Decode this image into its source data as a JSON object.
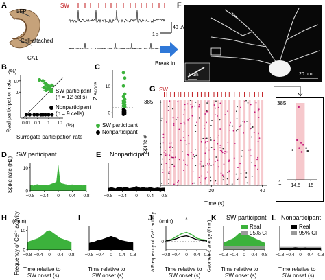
{
  "panels": {
    "A": {
      "label": "A",
      "sw": "SW",
      "lfp": "LFP",
      "cell_attached": "Cell-attached",
      "ca1": "CA1",
      "scale_time": "1 s",
      "scale_amp": "40 μV"
    },
    "B": {
      "label": "B",
      "y_unit": "(%)",
      "x_unit": "(%)",
      "ylabel": "Real participation rate",
      "xlabel": "Surrogate participation rate",
      "x_ticks": [
        "0.01",
        "0.1",
        "1",
        "10"
      ],
      "y_ticks": [
        "10",
        "1"
      ],
      "legend_participant": "SW participant",
      "legend_participant_n": "(n = 12 cells)",
      "legend_nonparticipant": "Nonparticipant",
      "legend_nonparticipant_n": "(n = 9 cells)"
    },
    "C": {
      "label": "C",
      "ylabel": "Z score",
      "y_ticks": [
        "10",
        "0"
      ],
      "legend_participant": "SW participant",
      "legend_nonparticipant": "Nonparticipant"
    },
    "D": {
      "label": "D",
      "title": "SW participant",
      "ylabel": "Spike rate (Hz)",
      "y_ticks": [
        "10",
        "0"
      ],
      "x_ticks": [
        "−0.8",
        "−0.4",
        "0",
        "0.4",
        "0.8"
      ]
    },
    "E": {
      "label": "E",
      "title": "Nonparticipant",
      "x_ticks": [
        "−0.8",
        "−0.4",
        "0",
        "0.4",
        "0.8"
      ]
    },
    "F": {
      "label": "F",
      "break_in": "Break in",
      "scale_main": "20 μm",
      "scale_inset": "5 μm"
    },
    "G": {
      "label": "G",
      "sw": "SW",
      "ylabel": "Spine #",
      "y_top": "385",
      "y_bottom": "1",
      "xlabel": "Time (s)",
      "x_ticks": [
        "0",
        "20",
        "40"
      ],
      "zoom_y_top": "385",
      "zoom_y_bottom": "1",
      "zoom_x_ticks": [
        "14.5",
        "15"
      ]
    },
    "H": {
      "label": "H",
      "unit": "(/min)",
      "ylabel": "Frequency of Ca²⁺ activity",
      "y_ticks": [
        "10",
        "0"
      ],
      "x_ticks": [
        "−0.8",
        "−0.4",
        "0",
        "0.4",
        "0.8"
      ],
      "xlabel_1": "Time relative to",
      "xlabel_2": "SW onset (s)"
    },
    "I": {
      "label": "I",
      "x_ticks": [
        "−0.8",
        "−0.4",
        "0",
        "0.4",
        "0.8"
      ],
      "xlabel_1": "Time relative to",
      "xlabel_2": "SW onset (s)"
    },
    "J": {
      "label": "J",
      "unit": "(/min)",
      "ylabel": "Δ Frequency of Ca²⁺ activity",
      "y_ticks": [
        "0"
      ],
      "star": "*",
      "x_ticks": [
        "−0.8",
        "−0.4",
        "0",
        "0.4",
        "0.8"
      ],
      "xlabel_1": "Time relative to",
      "xlabel_2": "SW onset (s)"
    },
    "K": {
      "label": "K",
      "title": "SW participant",
      "ylabel": "Geometric energy (/mm)",
      "legend_real": "Real",
      "legend_ci": "95% CI",
      "x_ticks": [
        "−0.8",
        "−0.4",
        "0",
        "0.4",
        "0.8"
      ],
      "xlabel_1": "Time relative to",
      "xlabel_2": "SW onset (s)"
    },
    "L": {
      "label": "L",
      "title": "Nonparticipant",
      "legend_real": "Real",
      "legend_ci": "95% CI",
      "x_ticks": [
        "−0.8",
        "−0.4",
        "0",
        "0.4",
        "0.8"
      ],
      "xlabel_1": "Time relative to",
      "xlabel_2": "SW onset (s)"
    }
  },
  "colors": {
    "participant_green": "#3cb23c",
    "nonparticipant_black": "#000000",
    "sw_red": "#c0181b",
    "sw_shade": "#f6c8cc",
    "spine_magenta": "#c2187a",
    "ci_gray": "#999999",
    "arrow_blue": "#2f78d8"
  },
  "chart_data": [
    {
      "panel": "B",
      "type": "scatter",
      "xlabel": "Surrogate participation rate",
      "ylabel": "Real participation rate",
      "x_scale": "log",
      "y_scale": "log",
      "xlim": [
        0.003,
        20
      ],
      "ylim": [
        0.005,
        30
      ],
      "series": [
        {
          "name": "SW participant",
          "color": "#3cb23c",
          "x": [
            0.15,
            0.3,
            0.5,
            0.7,
            1.0,
            1.3,
            0.4,
            0.8,
            1.2,
            1.6,
            0.6,
            2.0
          ],
          "y": [
            12,
            10,
            6,
            4,
            3.5,
            3,
            2.5,
            2.2,
            2,
            1.8,
            1.5,
            4
          ]
        },
        {
          "name": "Nonparticipant",
          "color": "#000000",
          "x": [
            0.01,
            0.02,
            0.05,
            0.1,
            0.2,
            0.5,
            1.0,
            2.0,
            0.3
          ],
          "y": [
            0.01,
            0.01,
            0.01,
            0.01,
            0.01,
            0.01,
            0.01,
            0.01,
            0.01
          ]
        }
      ]
    },
    {
      "panel": "C",
      "type": "scatter",
      "ylabel": "Z score",
      "ylim": [
        -2,
        16
      ],
      "series": [
        {
          "name": "SW participant",
          "color": "#3cb23c",
          "y": [
            15,
            13,
            10,
            7,
            6,
            5,
            4.5,
            4,
            3.5,
            3,
            2.5,
            2.2
          ]
        },
        {
          "name": "Nonparticipant",
          "color": "#000000",
          "y": [
            1.2,
            0.8,
            0.5,
            0.3,
            0.1,
            0,
            -0.2,
            -0.4,
            -0.6
          ]
        }
      ]
    },
    {
      "panel": "D",
      "type": "area",
      "title": "SW participant",
      "ylabel": "Spike rate (Hz)",
      "xlim": [
        -0.8,
        0.8
      ],
      "ylim": [
        0,
        12
      ],
      "color": "#3cb23c",
      "x": [
        -0.8,
        -0.7,
        -0.6,
        -0.5,
        -0.4,
        -0.3,
        -0.2,
        -0.1,
        -0.05,
        0,
        0.05,
        0.1,
        0.2,
        0.3,
        0.4,
        0.5,
        0.6,
        0.7,
        0.8
      ],
      "y": [
        2.5,
        2.2,
        2.8,
        2.4,
        2.6,
        2.3,
        3,
        3.5,
        4,
        11,
        4,
        3.2,
        2.8,
        2.5,
        2.7,
        2.4,
        2.6,
        2.3,
        2.5
      ]
    },
    {
      "panel": "E",
      "type": "area",
      "title": "Nonparticipant",
      "xlim": [
        -0.8,
        0.8
      ],
      "ylim": [
        0,
        12
      ],
      "color": "#000000",
      "x": [
        -0.8,
        -0.7,
        -0.6,
        -0.5,
        -0.4,
        -0.3,
        -0.2,
        -0.1,
        0,
        0.1,
        0.2,
        0.3,
        0.4,
        0.5,
        0.6,
        0.7,
        0.8
      ],
      "y": [
        1.2,
        1.5,
        1.0,
        1.8,
        1.3,
        1.6,
        1.1,
        1.4,
        2.0,
        1.3,
        1.5,
        1.2,
        1.6,
        1.1,
        1.4,
        1.2,
        1.3
      ]
    },
    {
      "panel": "G",
      "type": "scatter",
      "ylabel": "Spine #",
      "xlabel": "Time (s)",
      "xlim": [
        0,
        42
      ],
      "ylim": [
        1,
        385
      ],
      "sw_times": [
        1.5,
        2.5,
        4,
        5.5,
        7,
        8,
        9.5,
        11,
        12.5,
        14.7,
        16,
        17.5,
        19,
        21,
        22.5,
        24,
        25.5,
        27,
        29,
        31,
        33,
        35,
        37,
        38.5,
        40
      ]
    },
    {
      "panel": "G-zoom",
      "type": "scatter",
      "xlim": [
        14.2,
        15.2
      ],
      "ylim": [
        1,
        385
      ],
      "points": [
        {
          "x": 14.55,
          "y": 200
        },
        {
          "x": 14.62,
          "y": 160
        },
        {
          "x": 14.68,
          "y": 185
        },
        {
          "x": 14.7,
          "y": 140
        },
        {
          "x": 14.75,
          "y": 175
        },
        {
          "x": 14.6,
          "y": 365
        },
        {
          "x": 14.4,
          "y": 150
        },
        {
          "x": 14.85,
          "y": 160
        },
        {
          "x": 14.9,
          "y": 145
        }
      ]
    },
    {
      "panel": "H",
      "type": "area",
      "ylabel": "Frequency of Ca²⁺ activity",
      "xlim": [
        -0.8,
        0.8
      ],
      "ylim": [
        0,
        12
      ],
      "color": "#3cb23c",
      "x": [
        -0.8,
        -0.7,
        -0.6,
        -0.5,
        -0.4,
        -0.3,
        -0.2,
        -0.1,
        0,
        0.1,
        0.2,
        0.3,
        0.4,
        0.5,
        0.6,
        0.7,
        0.8
      ],
      "y": [
        4,
        4.5,
        5,
        5.5,
        6,
        7,
        8,
        9.5,
        10,
        9,
        8,
        7,
        6,
        5.5,
        5,
        4.5,
        4
      ]
    },
    {
      "panel": "I",
      "type": "area",
      "xlim": [
        -0.8,
        0.8
      ],
      "ylim": [
        0,
        12
      ],
      "color": "#000000",
      "x": [
        -0.8,
        -0.7,
        -0.6,
        -0.5,
        -0.4,
        -0.3,
        -0.2,
        -0.1,
        0,
        0.1,
        0.2,
        0.3,
        0.4,
        0.5,
        0.6,
        0.7,
        0.8
      ],
      "y": [
        3.5,
        4,
        4.2,
        4.8,
        5,
        5.5,
        6,
        6.5,
        7,
        6.5,
        6,
        5.2,
        4.8,
        4.5,
        4.2,
        4,
        3.8
      ]
    },
    {
      "panel": "J",
      "type": "line",
      "ylabel": "Δ Frequency of Ca²⁺ activity",
      "xlim": [
        -0.8,
        0.8
      ],
      "ylim": [
        -3,
        5
      ],
      "series": [
        {
          "name": "SW participant",
          "color": "#3cb23c",
          "x": [
            -0.8,
            -0.6,
            -0.4,
            -0.2,
            0,
            0.2,
            0.4,
            0.6,
            0.8
          ],
          "y": [
            0.2,
            0.5,
            1.5,
            2.5,
            3,
            2.2,
            1,
            0.5,
            0.3
          ]
        },
        {
          "name": "Nonparticipant",
          "color": "#000000",
          "x": [
            -0.8,
            -0.6,
            -0.4,
            -0.2,
            0,
            0.2,
            0.4,
            0.6,
            0.8
          ],
          "y": [
            0,
            0.3,
            0.8,
            1.5,
            1.8,
            1.2,
            0.5,
            0.2,
            0
          ]
        }
      ]
    },
    {
      "panel": "K",
      "type": "area",
      "title": "SW participant",
      "ylabel": "Geometric energy (/mm)",
      "xlim": [
        -0.8,
        0.8
      ],
      "ylim": [
        0,
        10
      ],
      "series": [
        {
          "name": "Real",
          "color": "#3cb23c",
          "x": [
            -0.8,
            -0.7,
            -0.6,
            -0.5,
            -0.4,
            -0.3,
            -0.2,
            -0.1,
            0,
            0.1,
            0.2,
            0.3,
            0.4,
            0.5,
            0.6,
            0.7,
            0.8
          ],
          "y": [
            3,
            3.5,
            4,
            4.5,
            5,
            6,
            7,
            7.5,
            7,
            6.5,
            6,
            5.5,
            5,
            4.5,
            4,
            3.5,
            3
          ]
        },
        {
          "name": "95% CI",
          "color": "#999999",
          "x": [
            -0.8,
            0,
            0.8
          ],
          "y": [
            1.5,
            1.5,
            1.5
          ]
        }
      ]
    },
    {
      "panel": "L",
      "type": "area",
      "title": "Nonparticipant",
      "xlim": [
        -0.8,
        0.8
      ],
      "ylim": [
        0,
        10
      ],
      "series": [
        {
          "name": "Real",
          "color": "#000000",
          "x": [
            -0.8,
            -0.6,
            -0.4,
            -0.2,
            0,
            0.2,
            0.4,
            0.6,
            0.8
          ],
          "y": [
            0.5,
            0.8,
            0.6,
            1.0,
            0.7,
            0.9,
            0.6,
            0.8,
            0.5
          ]
        },
        {
          "name": "95% CI",
          "color": "#999999",
          "x": [
            -0.8,
            0,
            0.8
          ],
          "y": [
            1.2,
            1.2,
            1.2
          ]
        }
      ]
    }
  ]
}
